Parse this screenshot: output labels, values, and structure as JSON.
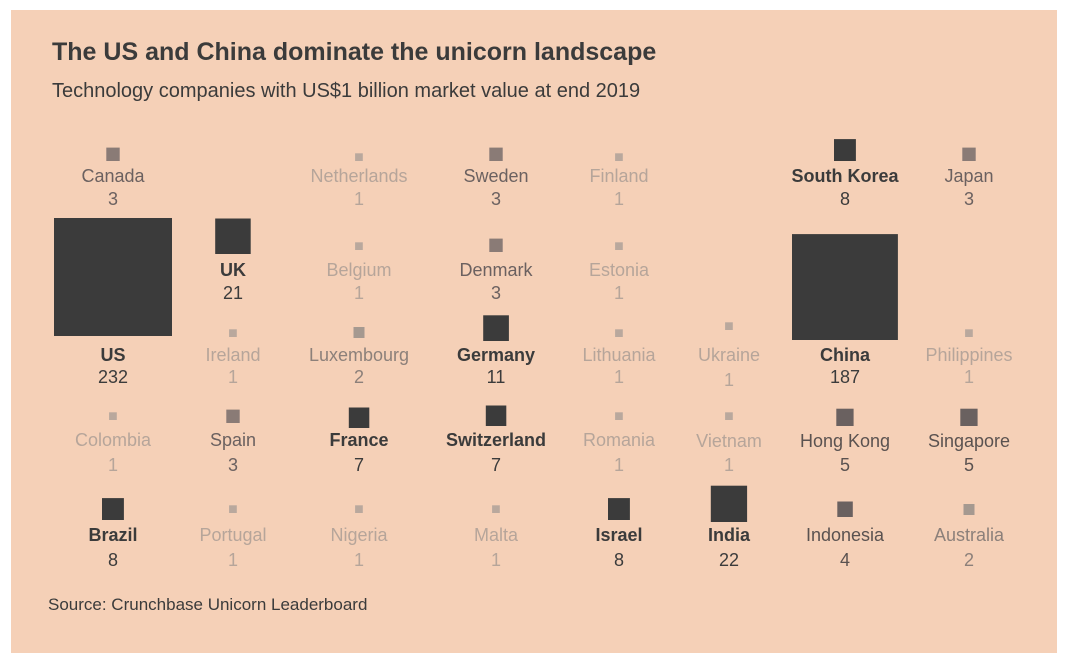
{
  "title": "The US and China dominate the unicorn landscape",
  "subtitle": "Technology companies with US$1 billion market value at end 2019",
  "source": "Source: Crunchbase Unicorn Leaderboard",
  "colors": {
    "background": "#f5d0b7",
    "text": "#3b3b3b",
    "tier_high": "#3b3b3b",
    "tier_mid": "#6a6160",
    "tier_low": "#8a7b76",
    "tier_lowest": "#a59990",
    "tier_one": "#b9a89d"
  },
  "chart_data": {
    "type": "proportional-square grid",
    "value_label": "Technology companies with US$1 billion market value at end 2019",
    "countries": [
      {
        "name": "Canada",
        "value": 3
      },
      {
        "name": "Netherlands",
        "value": 1
      },
      {
        "name": "Sweden",
        "value": 3
      },
      {
        "name": "Finland",
        "value": 1
      },
      {
        "name": "South Korea",
        "value": 8
      },
      {
        "name": "Japan",
        "value": 3
      },
      {
        "name": "US",
        "value": 232
      },
      {
        "name": "UK",
        "value": 21
      },
      {
        "name": "Belgium",
        "value": 1
      },
      {
        "name": "Denmark",
        "value": 3
      },
      {
        "name": "Estonia",
        "value": 1
      },
      {
        "name": "China",
        "value": 187
      },
      {
        "name": "Ireland",
        "value": 1
      },
      {
        "name": "Luxembourg",
        "value": 2
      },
      {
        "name": "Germany",
        "value": 11
      },
      {
        "name": "Lithuania",
        "value": 1
      },
      {
        "name": "Ukraine",
        "value": 1
      },
      {
        "name": "Philippines",
        "value": 1
      },
      {
        "name": "Colombia",
        "value": 1
      },
      {
        "name": "Spain",
        "value": 3
      },
      {
        "name": "France",
        "value": 7
      },
      {
        "name": "Switzerland",
        "value": 7
      },
      {
        "name": "Romania",
        "value": 1
      },
      {
        "name": "Vietnam",
        "value": 1
      },
      {
        "name": "Hong Kong",
        "value": 5
      },
      {
        "name": "Singapore",
        "value": 5
      },
      {
        "name": "Brazil",
        "value": 8
      },
      {
        "name": "Portugal",
        "value": 1
      },
      {
        "name": "Nigeria",
        "value": 1
      },
      {
        "name": "Malta",
        "value": 1
      },
      {
        "name": "Israel",
        "value": 8
      },
      {
        "name": "India",
        "value": 22
      },
      {
        "name": "Indonesia",
        "value": 4
      },
      {
        "name": "Australia",
        "value": 2
      }
    ]
  }
}
